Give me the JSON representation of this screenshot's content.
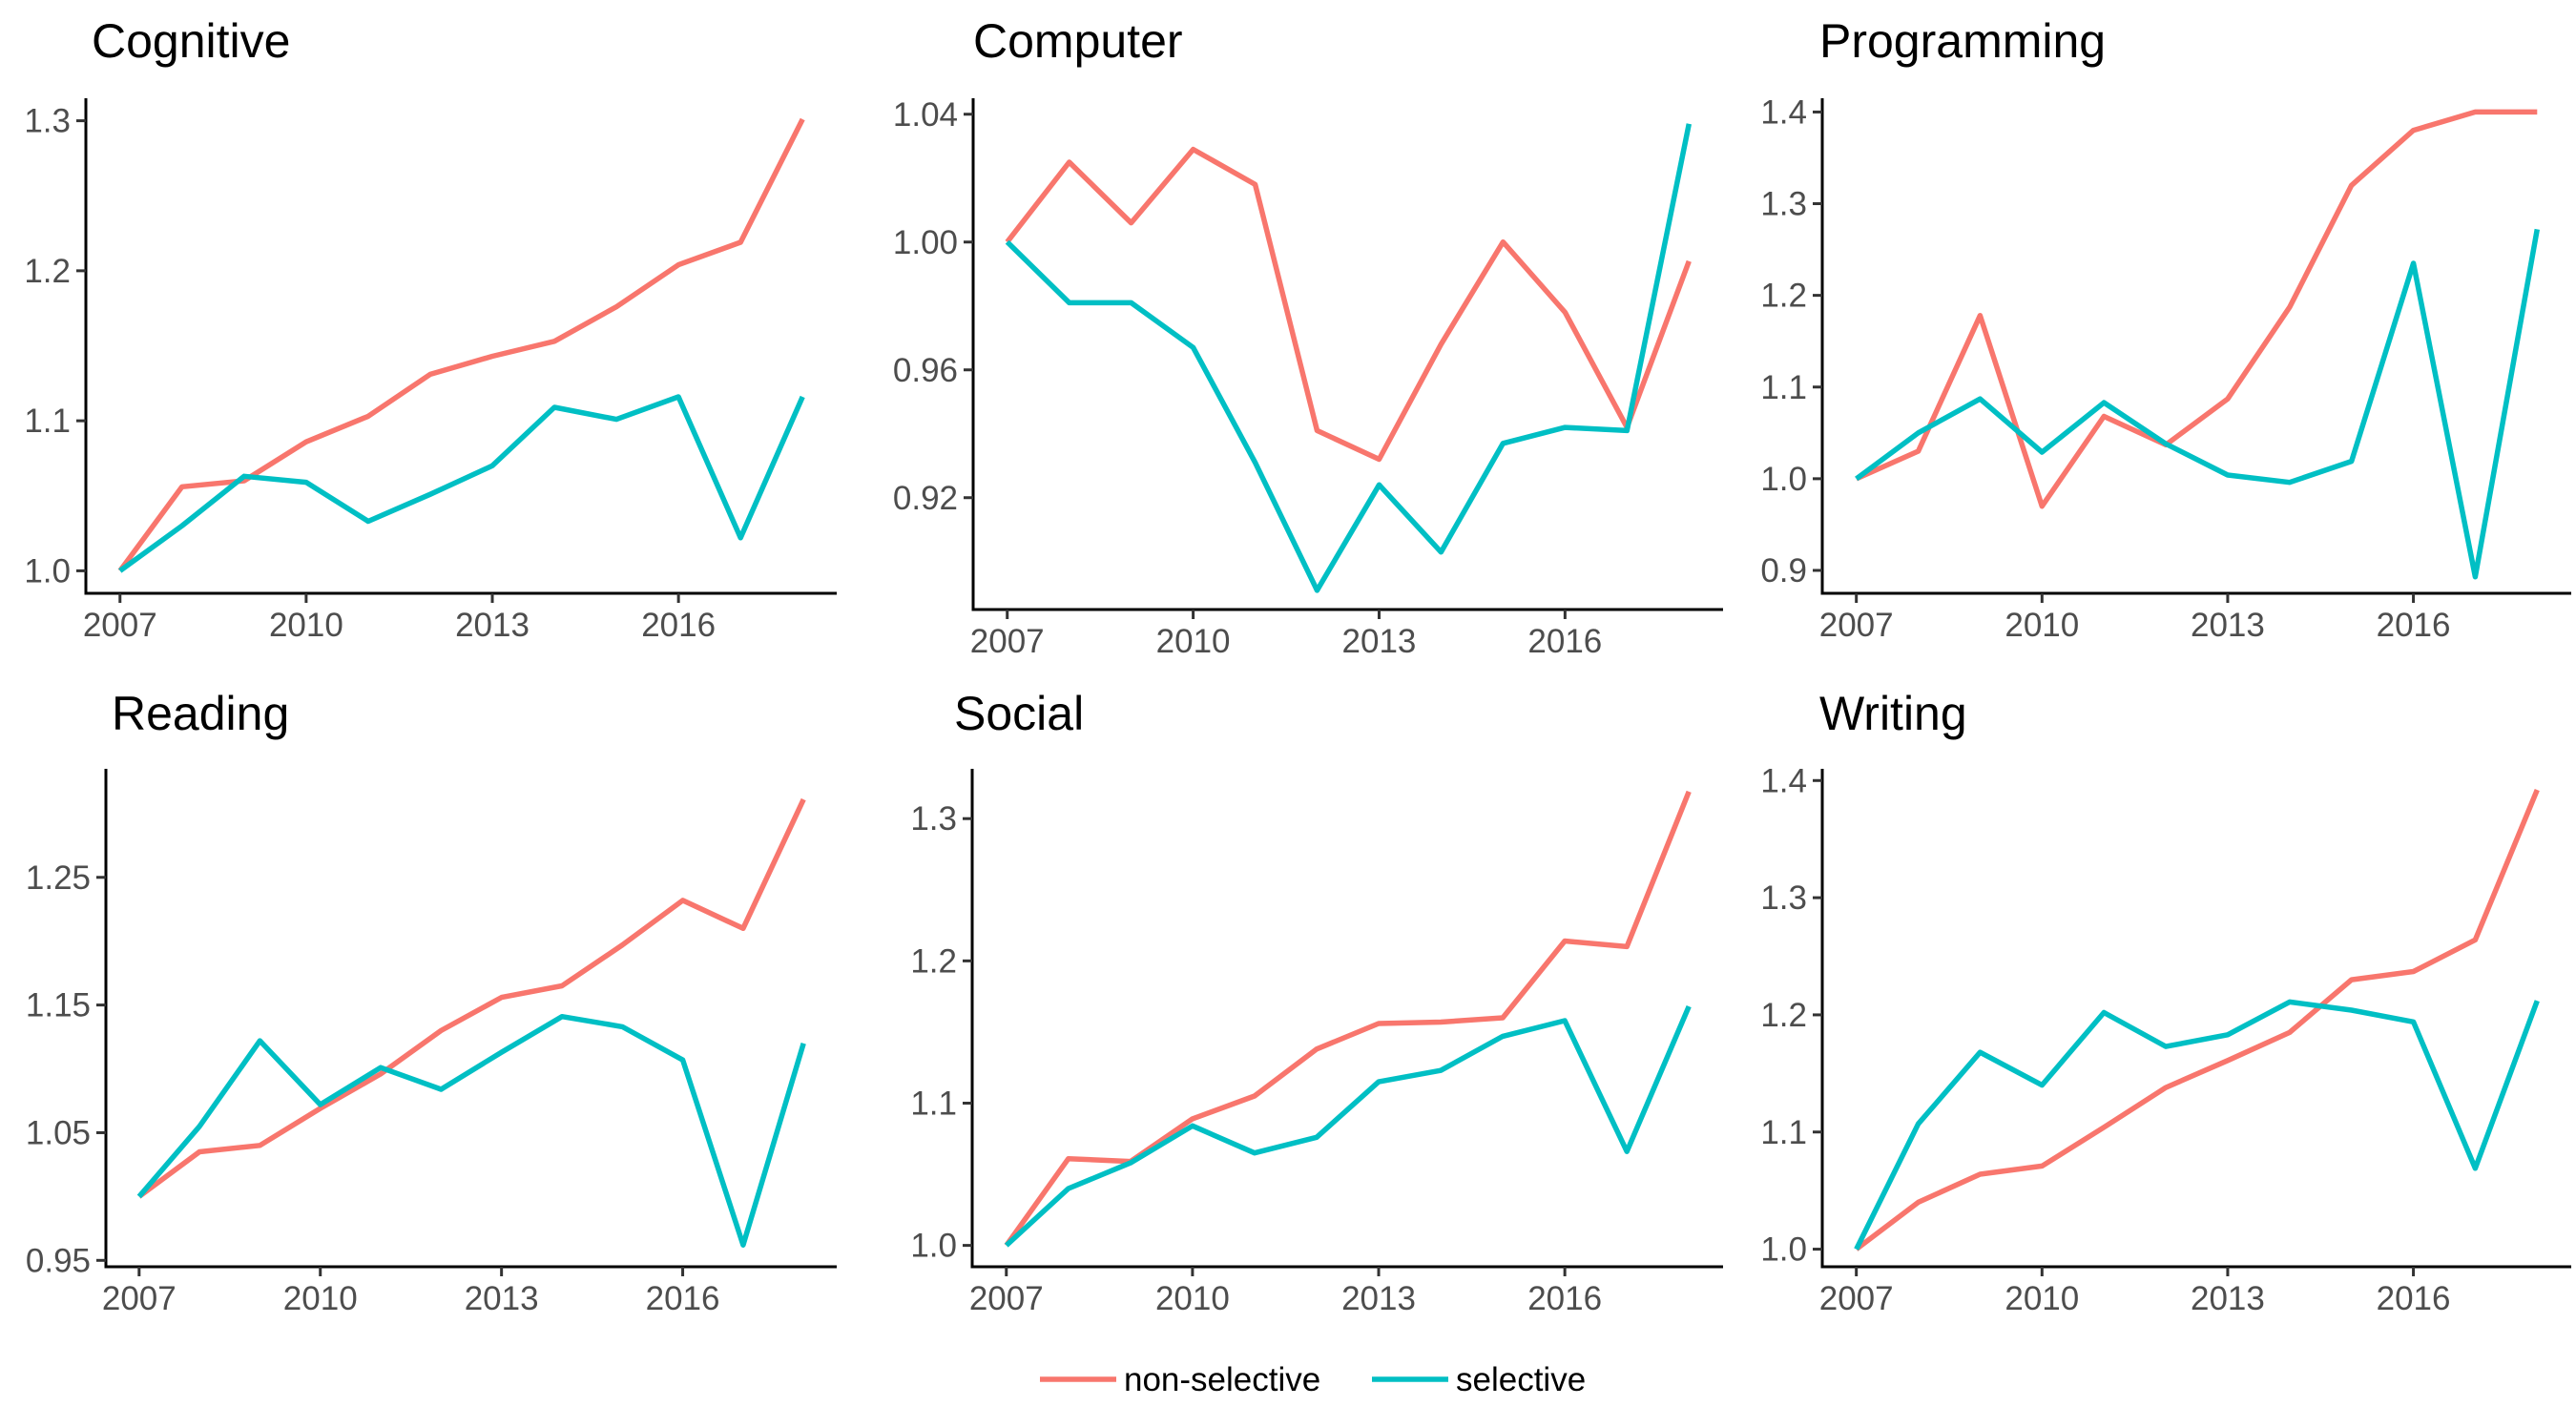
{
  "chart_data": {
    "type": "line",
    "layout": "facet-grid-2x3",
    "legend": {
      "placement": "bottom",
      "entries": [
        {
          "name": "non-selective",
          "color": "#F8766D"
        },
        {
          "name": "selective",
          "color": "#00BFC4"
        }
      ]
    },
    "x": [
      2007,
      2008,
      2009,
      2010,
      2011,
      2012,
      2013,
      2014,
      2015,
      2016,
      2017,
      2018
    ],
    "xticks": [
      "2007",
      "2010",
      "2013",
      "2016"
    ],
    "grid": false,
    "panels": [
      {
        "title": "Cognitive",
        "ylim": [
          0.985,
          1.315
        ],
        "yticks": [
          "1.0",
          "1.1",
          "1.2",
          "1.3"
        ],
        "series": [
          {
            "name": "non-selective",
            "values": [
              1.0,
              1.056,
              1.06,
              1.086,
              1.103,
              1.131,
              1.143,
              1.153,
              1.176,
              1.204,
              1.219,
              1.301
            ]
          },
          {
            "name": "selective",
            "values": [
              1.0,
              1.03,
              1.063,
              1.059,
              1.033,
              1.051,
              1.07,
              1.109,
              1.101,
              1.116,
              1.022,
              1.116
            ]
          }
        ]
      },
      {
        "title": "Computer",
        "ylim": [
          0.885,
          1.045
        ],
        "yticks": [
          "0.92",
          "0.96",
          "1.00",
          "1.04"
        ],
        "series": [
          {
            "name": "non-selective",
            "values": [
              1.0,
              1.025,
              1.006,
              1.029,
              1.018,
              0.941,
              0.932,
              0.968,
              1.0,
              0.978,
              0.942,
              0.994
            ]
          },
          {
            "name": "selective",
            "values": [
              1.0,
              0.981,
              0.981,
              0.967,
              0.931,
              0.891,
              0.924,
              0.903,
              0.937,
              0.942,
              0.941,
              1.037
            ]
          }
        ]
      },
      {
        "title": "Programming",
        "ylim": [
          0.875,
          1.415
        ],
        "yticks": [
          "0.9",
          "1.0",
          "1.1",
          "1.2",
          "1.3",
          "1.4"
        ],
        "series": [
          {
            "name": "non-selective",
            "values": [
              1.0,
              1.03,
              1.178,
              0.97,
              1.068,
              1.037,
              1.087,
              1.187,
              1.32,
              1.38,
              1.4,
              1.4
            ]
          },
          {
            "name": "selective",
            "values": [
              1.0,
              1.05,
              1.087,
              1.029,
              1.083,
              1.038,
              1.004,
              0.996,
              1.019,
              1.235,
              0.893,
              1.272
            ]
          }
        ]
      },
      {
        "title": "Reading",
        "ylim": [
          0.945,
          1.335
        ],
        "yticks": [
          "0.95",
          "1.05",
          "1.15",
          "1.25"
        ],
        "series": [
          {
            "name": "non-selective",
            "values": [
              1.0,
              1.035,
              1.04,
              1.069,
              1.096,
              1.13,
              1.156,
              1.165,
              1.197,
              1.232,
              1.21,
              1.311
            ]
          },
          {
            "name": "selective",
            "values": [
              1.0,
              1.055,
              1.122,
              1.072,
              1.101,
              1.084,
              1.113,
              1.141,
              1.133,
              1.107,
              0.962,
              1.12
            ]
          }
        ]
      },
      {
        "title": "Social",
        "ylim": [
          0.985,
          1.335
        ],
        "yticks": [
          "1.0",
          "1.1",
          "1.2",
          "1.3"
        ],
        "series": [
          {
            "name": "non-selective",
            "values": [
              1.0,
              1.061,
              1.059,
              1.089,
              1.105,
              1.138,
              1.156,
              1.157,
              1.16,
              1.214,
              1.21,
              1.319
            ]
          },
          {
            "name": "selective",
            "values": [
              1.0,
              1.04,
              1.058,
              1.084,
              1.065,
              1.076,
              1.115,
              1.123,
              1.147,
              1.158,
              1.066,
              1.168
            ]
          }
        ]
      },
      {
        "title": "Writing",
        "ylim": [
          0.985,
          1.41
        ],
        "yticks": [
          "1.0",
          "1.1",
          "1.2",
          "1.3",
          "1.4"
        ],
        "series": [
          {
            "name": "non-selective",
            "values": [
              1.0,
              1.04,
              1.064,
              1.071,
              1.104,
              1.138,
              1.161,
              1.185,
              1.23,
              1.237,
              1.264,
              1.392
            ]
          },
          {
            "name": "selective",
            "values": [
              1.0,
              1.107,
              1.168,
              1.14,
              1.202,
              1.173,
              1.183,
              1.211,
              1.204,
              1.194,
              1.069,
              1.212
            ]
          }
        ]
      }
    ]
  }
}
